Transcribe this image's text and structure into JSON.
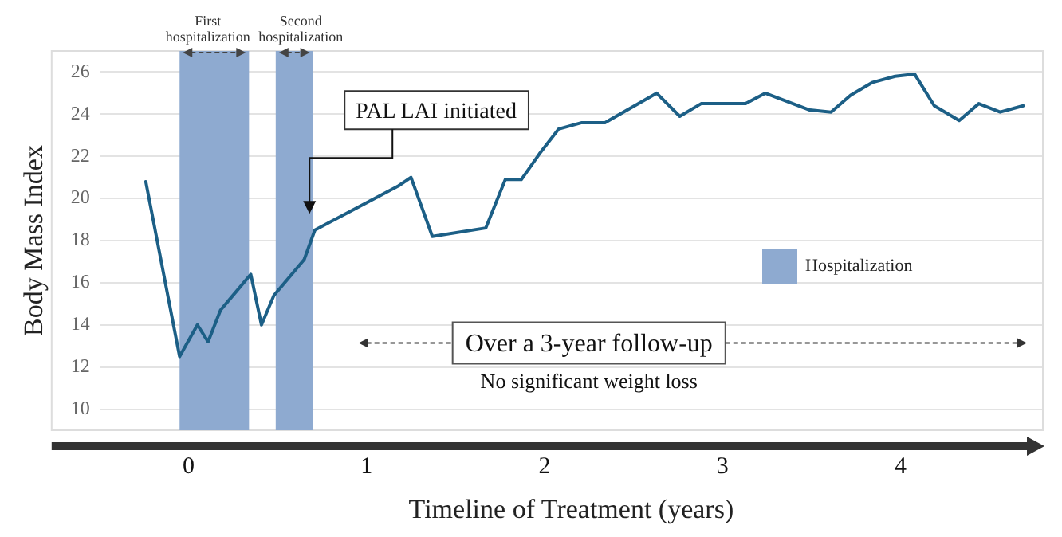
{
  "chart_data": {
    "type": "line",
    "xlabel": "Timeline of Treatment (years)",
    "ylabel": "Body Mass Index",
    "x": [
      -0.24,
      -0.05,
      0.05,
      0.11,
      0.18,
      0.24,
      0.35,
      0.41,
      0.48,
      0.65,
      0.71,
      1.18,
      1.25,
      1.37,
      1.67,
      1.78,
      1.87,
      1.97,
      2.08,
      2.21,
      2.34,
      2.63,
      2.76,
      2.88,
      3.13,
      3.24,
      3.49,
      3.61,
      3.72,
      3.84,
      3.97,
      4.08,
      4.19,
      4.33,
      4.44,
      4.56,
      4.69
    ],
    "series": [
      {
        "color": "#1c5f86",
        "values": [
          20.8,
          12.5,
          14.0,
          13.2,
          14.7,
          15.3,
          16.4,
          14.0,
          15.4,
          17.1,
          18.5,
          20.6,
          21.0,
          18.2,
          18.6,
          20.9,
          20.9,
          22.1,
          23.3,
          23.6,
          23.6,
          25.0,
          23.9,
          24.5,
          24.5,
          25.0,
          24.2,
          24.1,
          24.9,
          25.5,
          25.8,
          25.9,
          24.4,
          23.7,
          24.5,
          24.1,
          24.4
        ]
      }
    ],
    "xlim": [
      -0.5,
      4.8
    ],
    "xticks": [
      0,
      1,
      2,
      3,
      4
    ],
    "ylim": [
      9,
      27
    ],
    "yticks": [
      10,
      12,
      14,
      16,
      18,
      20,
      22,
      24,
      26
    ],
    "grid": "y",
    "marker": "none",
    "line_style": "solid",
    "bands": [
      {
        "axis": "x",
        "from": -0.05,
        "to": 0.34,
        "label": "First hospitalization",
        "color": "#8eaad0"
      },
      {
        "axis": "x",
        "from": 0.49,
        "to": 0.7,
        "label": "Second hospitalization",
        "color": "#8eaad0"
      }
    ],
    "annotations": [
      {
        "text": "PAL LAI initiated",
        "x": 0.68,
        "y": 19.2
      },
      "Over a 3-year follow-up",
      "No significant weight loss",
      "Hospitalization"
    ]
  }
}
